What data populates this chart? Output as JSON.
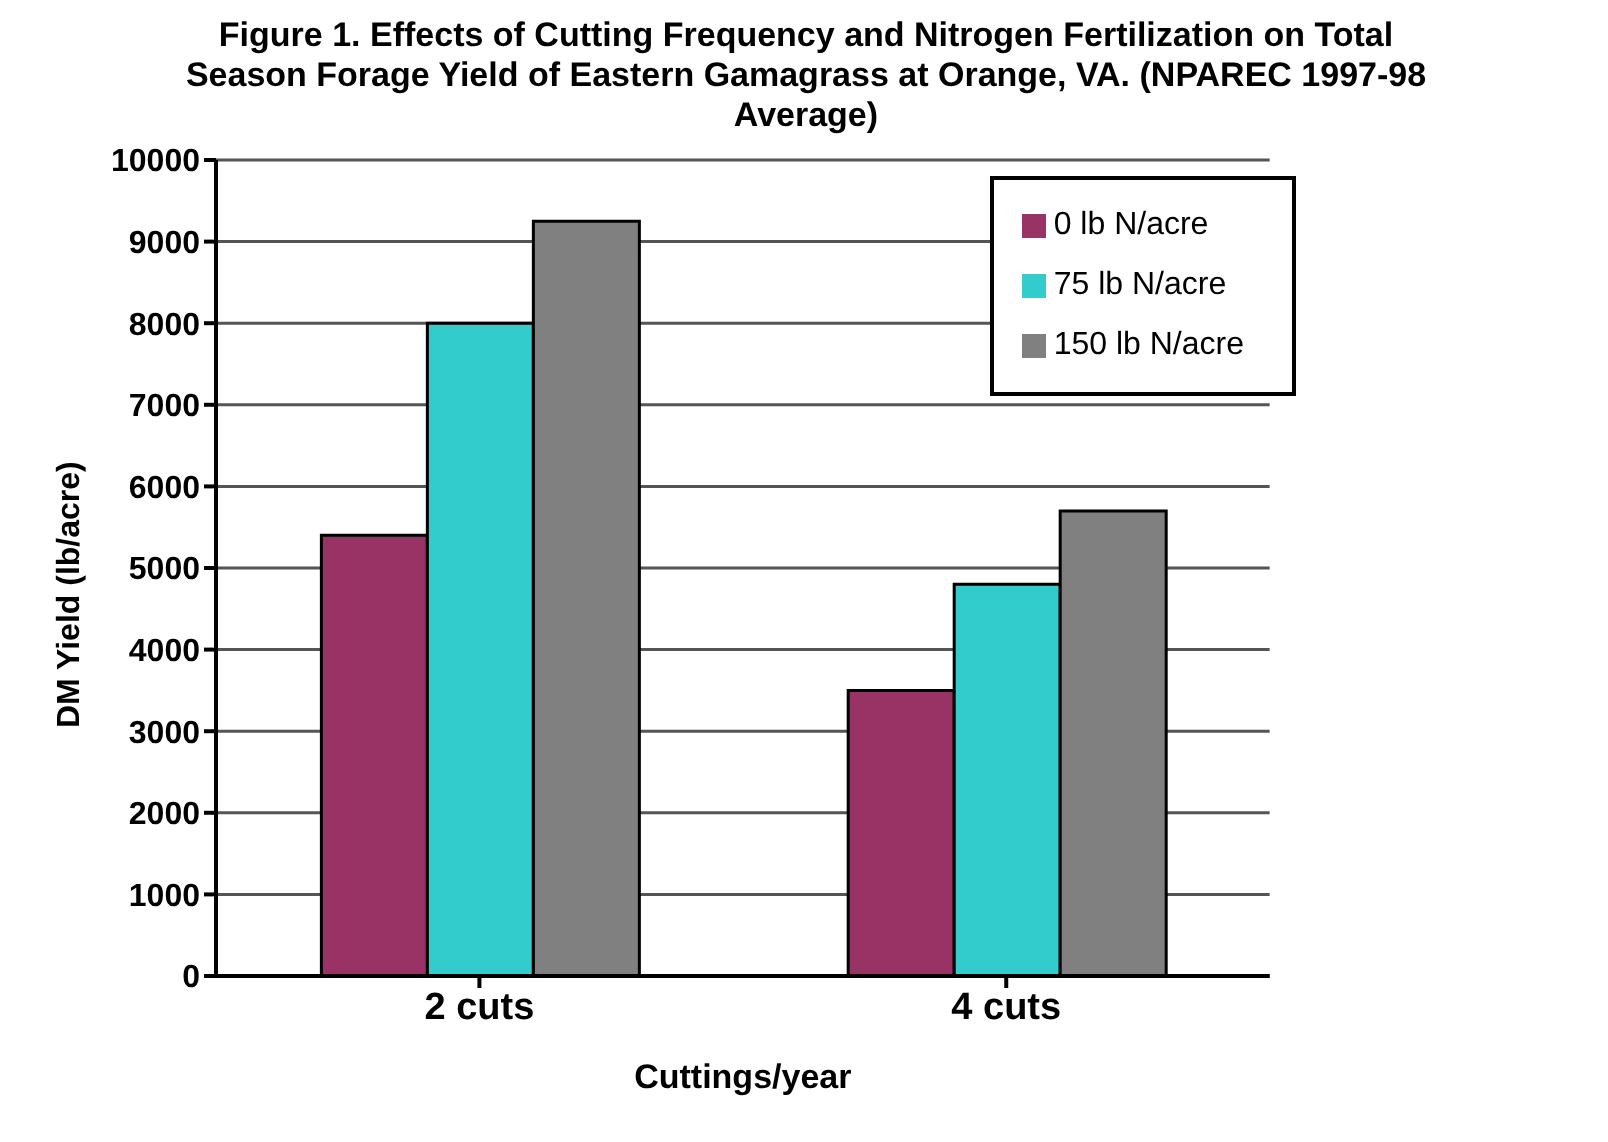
{
  "chart_data": {
    "type": "bar",
    "title": "Figure 1.  Effects of Cutting Frequency and Nitrogen Fertilization on Total Season Forage Yield of Eastern Gamagrass at Orange, VA.  (NPAREC 1997-98 Average)",
    "xlabel": "Cuttings/year",
    "ylabel": "DM Yield (lb/acre)",
    "categories": [
      "2 cuts",
      "4 cuts"
    ],
    "series": [
      {
        "name": "0 lb N/acre",
        "color": "#993366",
        "values": [
          5400,
          3500
        ]
      },
      {
        "name": "75 lb N/acre",
        "color": "#33cccc",
        "values": [
          8000,
          4800
        ]
      },
      {
        "name": "150 lb N/acre",
        "color": "#808080",
        "values": [
          9250,
          5700
        ]
      }
    ],
    "ylim": [
      0,
      10000
    ],
    "yticks": [
      0,
      1000,
      2000,
      3000,
      4000,
      5000,
      6000,
      7000,
      8000,
      9000,
      10000
    ],
    "grid": "y",
    "legend": "top right"
  }
}
